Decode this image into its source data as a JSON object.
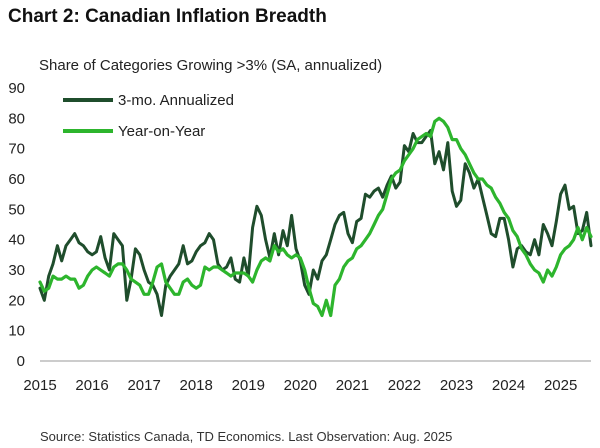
{
  "title": "Chart 2: Canadian Inflation Breadth",
  "subtitle": "Share of Categories Growing >3% (SA, annualized)",
  "source": "Source: Statistics Canada, TD Economics. Last Observation: Aug. 2025",
  "chart_data": {
    "type": "line",
    "title": "Chart 2: Canadian Inflation Breadth",
    "ylabel": "",
    "xlabel": "",
    "ylim": [
      0,
      90
    ],
    "yticks": [
      0,
      10,
      20,
      30,
      40,
      50,
      60,
      70,
      80,
      90
    ],
    "xticks": [
      "2015",
      "2016",
      "2017",
      "2018",
      "2019",
      "2020",
      "2021",
      "2022",
      "2023",
      "2024",
      "2025"
    ],
    "xlim": [
      "2015-01",
      "2025-08"
    ],
    "grid": false,
    "legend_position": "top-left",
    "series": [
      {
        "name": "3-mo. Annualized",
        "color": "#1f4d2c",
        "points": [
          [
            "2015-01",
            24
          ],
          [
            "2015-02",
            20
          ],
          [
            "2015-03",
            28
          ],
          [
            "2015-04",
            32
          ],
          [
            "2015-05",
            38
          ],
          [
            "2015-06",
            33
          ],
          [
            "2015-07",
            38
          ],
          [
            "2015-08",
            40
          ],
          [
            "2015-09",
            42
          ],
          [
            "2015-10",
            39
          ],
          [
            "2015-11",
            38
          ],
          [
            "2015-12",
            36
          ],
          [
            "2016-01",
            35
          ],
          [
            "2016-02",
            36
          ],
          [
            "2016-03",
            41
          ],
          [
            "2016-04",
            34
          ],
          [
            "2016-05",
            30
          ],
          [
            "2016-06",
            42
          ],
          [
            "2016-07",
            40
          ],
          [
            "2016-08",
            38
          ],
          [
            "2016-09",
            20
          ],
          [
            "2016-10",
            27
          ],
          [
            "2016-11",
            37
          ],
          [
            "2016-12",
            35
          ],
          [
            "2017-01",
            30
          ],
          [
            "2017-02",
            26
          ],
          [
            "2017-03",
            25
          ],
          [
            "2017-04",
            22
          ],
          [
            "2017-05",
            15
          ],
          [
            "2017-06",
            25
          ],
          [
            "2017-07",
            28
          ],
          [
            "2017-08",
            30
          ],
          [
            "2017-09",
            32
          ],
          [
            "2017-10",
            38
          ],
          [
            "2017-11",
            32
          ],
          [
            "2017-12",
            33
          ],
          [
            "2018-01",
            36
          ],
          [
            "2018-02",
            38
          ],
          [
            "2018-03",
            39
          ],
          [
            "2018-04",
            42
          ],
          [
            "2018-05",
            40
          ],
          [
            "2018-06",
            32
          ],
          [
            "2018-07",
            30
          ],
          [
            "2018-08",
            31
          ],
          [
            "2018-09",
            34
          ],
          [
            "2018-10",
            27
          ],
          [
            "2018-11",
            26
          ],
          [
            "2018-12",
            34
          ],
          [
            "2019-01",
            28
          ],
          [
            "2019-02",
            44
          ],
          [
            "2019-03",
            51
          ],
          [
            "2019-04",
            48
          ],
          [
            "2019-05",
            40
          ],
          [
            "2019-06",
            34
          ],
          [
            "2019-07",
            42
          ],
          [
            "2019-08",
            35
          ],
          [
            "2019-09",
            43
          ],
          [
            "2019-10",
            38
          ],
          [
            "2019-11",
            48
          ],
          [
            "2019-12",
            37
          ],
          [
            "2020-01",
            33
          ],
          [
            "2020-02",
            25
          ],
          [
            "2020-03",
            22
          ],
          [
            "2020-04",
            30
          ],
          [
            "2020-05",
            27
          ],
          [
            "2020-06",
            33
          ],
          [
            "2020-07",
            35
          ],
          [
            "2020-08",
            40
          ],
          [
            "2020-09",
            45
          ],
          [
            "2020-10",
            48
          ],
          [
            "2020-11",
            49
          ],
          [
            "2020-12",
            42
          ],
          [
            "2021-01",
            39
          ],
          [
            "2021-02",
            46
          ],
          [
            "2021-03",
            47
          ],
          [
            "2021-04",
            55
          ],
          [
            "2021-05",
            54
          ],
          [
            "2021-06",
            56
          ],
          [
            "2021-07",
            57
          ],
          [
            "2021-08",
            54
          ],
          [
            "2021-09",
            58
          ],
          [
            "2021-10",
            61
          ],
          [
            "2021-11",
            57
          ],
          [
            "2021-12",
            59
          ],
          [
            "2022-01",
            71
          ],
          [
            "2022-02",
            69
          ],
          [
            "2022-03",
            75
          ],
          [
            "2022-04",
            72
          ],
          [
            "2022-05",
            72
          ],
          [
            "2022-06",
            74
          ],
          [
            "2022-07",
            76
          ],
          [
            "2022-08",
            65
          ],
          [
            "2022-09",
            69
          ],
          [
            "2022-10",
            63
          ],
          [
            "2022-11",
            72
          ],
          [
            "2022-12",
            56
          ],
          [
            "2023-01",
            51
          ],
          [
            "2023-02",
            53
          ],
          [
            "2023-03",
            65
          ],
          [
            "2023-04",
            62
          ],
          [
            "2023-05",
            57
          ],
          [
            "2023-06",
            60
          ],
          [
            "2023-07",
            54
          ],
          [
            "2023-08",
            48
          ],
          [
            "2023-09",
            42
          ],
          [
            "2023-10",
            41
          ],
          [
            "2023-11",
            47
          ],
          [
            "2023-12",
            47
          ],
          [
            "2024-01",
            40
          ],
          [
            "2024-02",
            31
          ],
          [
            "2024-03",
            37
          ],
          [
            "2024-04",
            38
          ],
          [
            "2024-05",
            36
          ],
          [
            "2024-06",
            35
          ],
          [
            "2024-07",
            40
          ],
          [
            "2024-08",
            35
          ],
          [
            "2024-09",
            45
          ],
          [
            "2024-10",
            42
          ],
          [
            "2024-11",
            38
          ],
          [
            "2024-12",
            46
          ],
          [
            "2025-01",
            55
          ],
          [
            "2025-02",
            58
          ],
          [
            "2025-03",
            50
          ],
          [
            "2025-04",
            51
          ],
          [
            "2025-05",
            42
          ],
          [
            "2025-06",
            43
          ],
          [
            "2025-07",
            49
          ],
          [
            "2025-08",
            38
          ]
        ]
      },
      {
        "name": "Year-on-Year",
        "color": "#2db52d",
        "points": [
          [
            "2015-01",
            26
          ],
          [
            "2015-02",
            23
          ],
          [
            "2015-03",
            24
          ],
          [
            "2015-04",
            28
          ],
          [
            "2015-05",
            27
          ],
          [
            "2015-06",
            27
          ],
          [
            "2015-07",
            28
          ],
          [
            "2015-08",
            27
          ],
          [
            "2015-09",
            27
          ],
          [
            "2015-10",
            24
          ],
          [
            "2015-11",
            25
          ],
          [
            "2015-12",
            28
          ],
          [
            "2016-01",
            30
          ],
          [
            "2016-02",
            31
          ],
          [
            "2016-03",
            30
          ],
          [
            "2016-04",
            29
          ],
          [
            "2016-05",
            28
          ],
          [
            "2016-06",
            31
          ],
          [
            "2016-07",
            32
          ],
          [
            "2016-08",
            32
          ],
          [
            "2016-09",
            30
          ],
          [
            "2016-10",
            27
          ],
          [
            "2016-11",
            26
          ],
          [
            "2016-12",
            25
          ],
          [
            "2017-01",
            22
          ],
          [
            "2017-02",
            22
          ],
          [
            "2017-03",
            26
          ],
          [
            "2017-04",
            31
          ],
          [
            "2017-05",
            32
          ],
          [
            "2017-06",
            26
          ],
          [
            "2017-07",
            24
          ],
          [
            "2017-08",
            22
          ],
          [
            "2017-09",
            22
          ],
          [
            "2017-10",
            26
          ],
          [
            "2017-11",
            27
          ],
          [
            "2017-12",
            25
          ],
          [
            "2018-01",
            24
          ],
          [
            "2018-02",
            25
          ],
          [
            "2018-03",
            31
          ],
          [
            "2018-04",
            30
          ],
          [
            "2018-05",
            31
          ],
          [
            "2018-06",
            31
          ],
          [
            "2018-07",
            30
          ],
          [
            "2018-08",
            29
          ],
          [
            "2018-09",
            28
          ],
          [
            "2018-10",
            29
          ],
          [
            "2018-11",
            29
          ],
          [
            "2018-12",
            29
          ],
          [
            "2019-01",
            28
          ],
          [
            "2019-02",
            26
          ],
          [
            "2019-03",
            30
          ],
          [
            "2019-04",
            33
          ],
          [
            "2019-05",
            34
          ],
          [
            "2019-06",
            33
          ],
          [
            "2019-07",
            38
          ],
          [
            "2019-08",
            36
          ],
          [
            "2019-09",
            37
          ],
          [
            "2019-10",
            35
          ],
          [
            "2019-11",
            34
          ],
          [
            "2019-12",
            35
          ],
          [
            "2020-01",
            34
          ],
          [
            "2020-02",
            30
          ],
          [
            "2020-03",
            24
          ],
          [
            "2020-04",
            19
          ],
          [
            "2020-05",
            18
          ],
          [
            "2020-06",
            15
          ],
          [
            "2020-07",
            20
          ],
          [
            "2020-08",
            15
          ],
          [
            "2020-09",
            25
          ],
          [
            "2020-10",
            27
          ],
          [
            "2020-11",
            31
          ],
          [
            "2020-12",
            33
          ],
          [
            "2021-01",
            34
          ],
          [
            "2021-02",
            37
          ],
          [
            "2021-03",
            38
          ],
          [
            "2021-04",
            40
          ],
          [
            "2021-05",
            42
          ],
          [
            "2021-06",
            45
          ],
          [
            "2021-07",
            48
          ],
          [
            "2021-08",
            50
          ],
          [
            "2021-09",
            55
          ],
          [
            "2021-10",
            60
          ],
          [
            "2021-11",
            62
          ],
          [
            "2021-12",
            63
          ],
          [
            "2022-01",
            66
          ],
          [
            "2022-02",
            68
          ],
          [
            "2022-03",
            70
          ],
          [
            "2022-04",
            73
          ],
          [
            "2022-05",
            74
          ],
          [
            "2022-06",
            75
          ],
          [
            "2022-07",
            74
          ],
          [
            "2022-08",
            79
          ],
          [
            "2022-09",
            80
          ],
          [
            "2022-10",
            79
          ],
          [
            "2022-11",
            77
          ],
          [
            "2022-12",
            73
          ],
          [
            "2023-01",
            73
          ],
          [
            "2023-02",
            70
          ],
          [
            "2023-03",
            68
          ],
          [
            "2023-04",
            65
          ],
          [
            "2023-05",
            62
          ],
          [
            "2023-06",
            60
          ],
          [
            "2023-07",
            60
          ],
          [
            "2023-08",
            58
          ],
          [
            "2023-09",
            57
          ],
          [
            "2023-10",
            54
          ],
          [
            "2023-11",
            52
          ],
          [
            "2023-12",
            49
          ],
          [
            "2024-01",
            47
          ],
          [
            "2024-02",
            43
          ],
          [
            "2024-03",
            41
          ],
          [
            "2024-04",
            37
          ],
          [
            "2024-05",
            35
          ],
          [
            "2024-06",
            32
          ],
          [
            "2024-07",
            30
          ],
          [
            "2024-08",
            29
          ],
          [
            "2024-09",
            26
          ],
          [
            "2024-10",
            30
          ],
          [
            "2024-11",
            28
          ],
          [
            "2024-12",
            31
          ],
          [
            "2025-01",
            35
          ],
          [
            "2025-02",
            37
          ],
          [
            "2025-03",
            38
          ],
          [
            "2025-04",
            40
          ],
          [
            "2025-05",
            44
          ],
          [
            "2025-06",
            40
          ],
          [
            "2025-07",
            44
          ],
          [
            "2025-08",
            41
          ]
        ]
      }
    ]
  }
}
